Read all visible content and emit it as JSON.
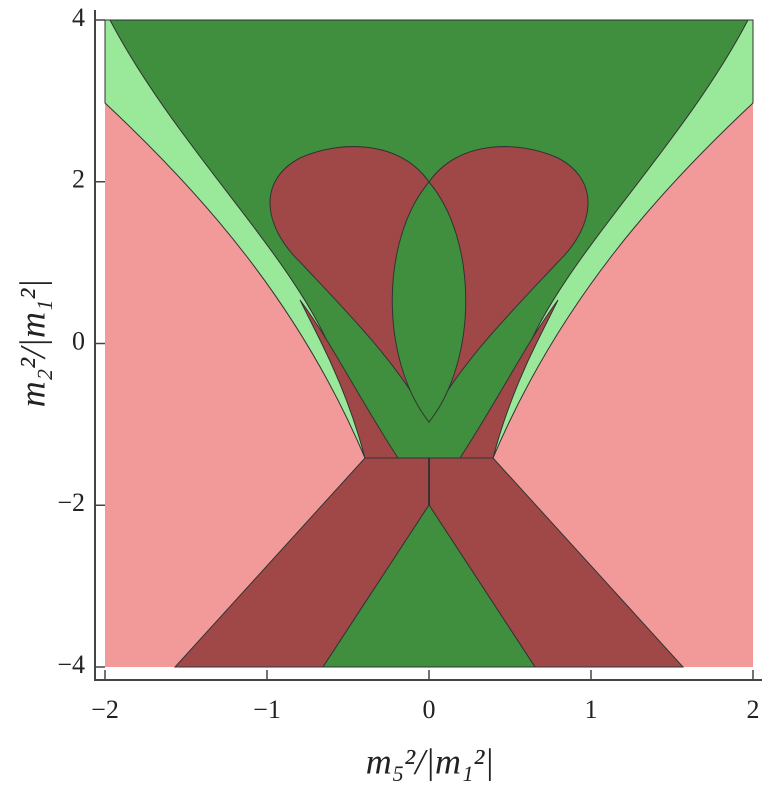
{
  "chart_data": {
    "type": "region",
    "x_label": "m₅²/|m₁²|",
    "y_label": "m₂²/|m₁²|",
    "xlim": [
      -2,
      2
    ],
    "ylim": [
      -4,
      4
    ],
    "xticks": [
      {
        "value": -2,
        "label": "−2"
      },
      {
        "value": -1,
        "label": "−1"
      },
      0,
      1,
      2
    ],
    "yticks": [
      {
        "value": -4,
        "label": "−4"
      },
      {
        "value": -2,
        "label": "−2"
      },
      0,
      2,
      4
    ]
  }
}
